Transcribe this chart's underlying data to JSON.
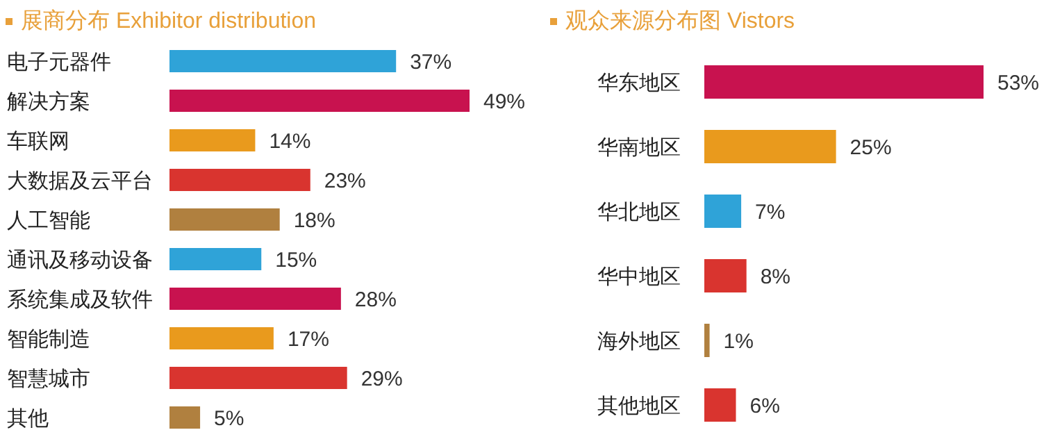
{
  "chart_data": [
    {
      "type": "bar",
      "orientation": "horizontal",
      "title": "展商分布 Exhibitor distribution",
      "categories": [
        "电子元器件",
        "解决方案",
        "车联网",
        "大数据及云平台",
        "人工智能",
        "通讯及移动设备",
        "系统集成及软件",
        "智能制造",
        "智慧城市",
        "其他"
      ],
      "values": [
        37,
        49,
        14,
        23,
        18,
        15,
        28,
        17,
        29,
        5
      ],
      "colors": [
        "#2fa3d8",
        "#c8124f",
        "#e99a1d",
        "#d9342f",
        "#b0803f",
        "#2fa3d8",
        "#c8124f",
        "#e99a1d",
        "#d9342f",
        "#b0803f"
      ],
      "value_labels": [
        "37%",
        "49%",
        "14%",
        "23%",
        "18%",
        "15%",
        "28%",
        "17%",
        "29%",
        "5%"
      ]
    },
    {
      "type": "bar",
      "orientation": "horizontal",
      "title": "观众来源分布图 Vistors",
      "categories": [
        "华东地区",
        "华南地区",
        "华北地区",
        "华中地区",
        "海外地区",
        "其他地区"
      ],
      "values": [
        53,
        25,
        7,
        8,
        1,
        6
      ],
      "colors": [
        "#c8124f",
        "#e99a1d",
        "#2fa3d8",
        "#d9342f",
        "#b0803f",
        "#d9342f"
      ],
      "value_labels": [
        "53%",
        "25%",
        "7%",
        "8%",
        "1%",
        "6%"
      ]
    }
  ]
}
